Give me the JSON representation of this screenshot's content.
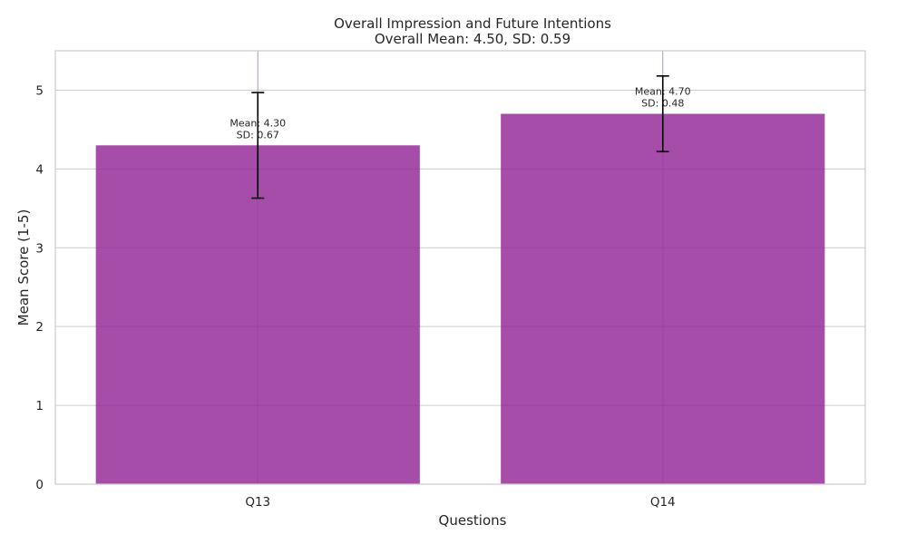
{
  "chart_data": {
    "type": "bar",
    "title": "Overall Impression and Future Intentions",
    "subtitle": "Overall Mean: 4.50, SD: 0.59",
    "xlabel": "Questions",
    "ylabel": "Mean Score (1-5)",
    "categories": [
      "Q13",
      "Q14"
    ],
    "values": [
      4.3,
      4.7
    ],
    "errors": [
      0.67,
      0.48
    ],
    "bar_labels": [
      [
        "Mean: 4.30",
        "SD: 0.67"
      ],
      [
        "Mean: 4.70",
        "SD: 0.48"
      ]
    ],
    "ylim": [
      0,
      5.5
    ],
    "yticks": [
      0,
      1,
      2,
      3,
      4,
      5
    ],
    "grid": true,
    "bar_color": "#9b3aa0",
    "bar_opacity": 0.9,
    "error_color": "#000000"
  }
}
